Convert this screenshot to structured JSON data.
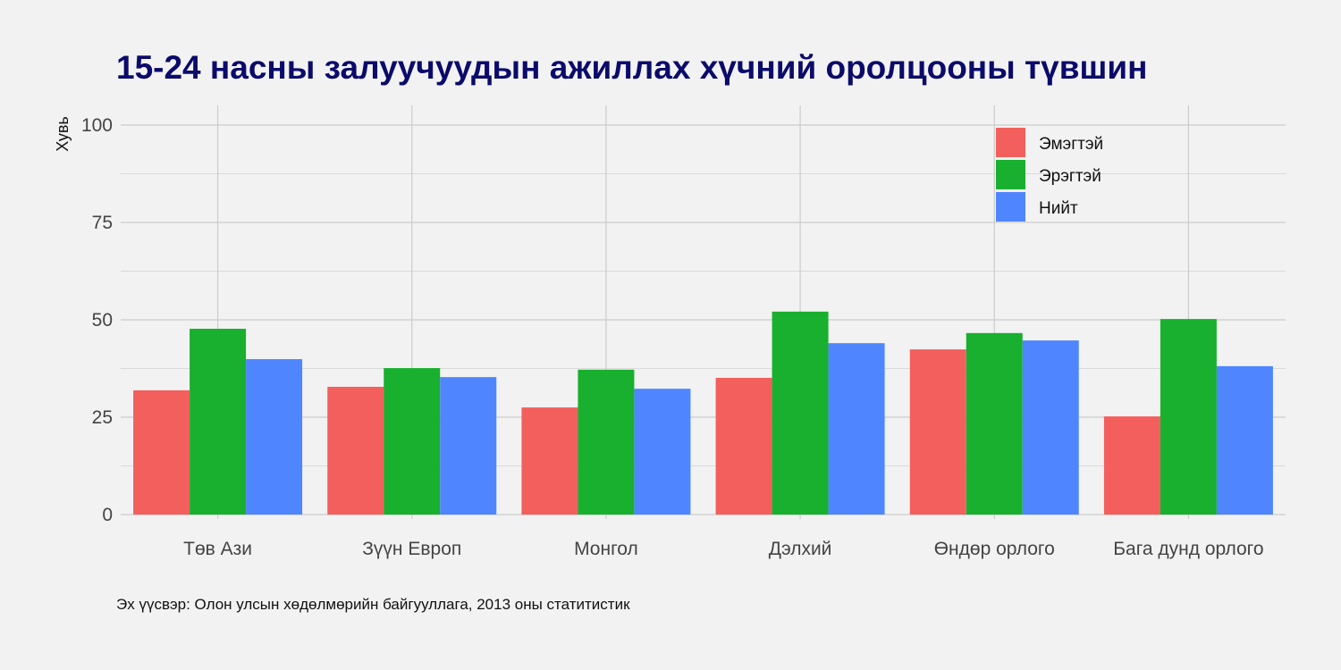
{
  "chart_data": {
    "type": "bar",
    "title": "15-24 насны залуучуудын ажиллах хүчний оролцооны түвшин",
    "xlabel": "",
    "ylabel": "Хувь",
    "ylim": [
      0,
      100
    ],
    "yticks": [
      0,
      25,
      50,
      75,
      100
    ],
    "grid": true,
    "legend_position": "top-right",
    "categories": [
      "Төв Ази",
      "Зүүн Европ",
      "Монгол",
      "Дэлхий",
      "Өндөр орлого",
      "Бага дунд орлого"
    ],
    "series": [
      {
        "name": "Эмэгтэй",
        "color": "#F35F5C",
        "values": [
          31.9,
          32.8,
          27.5,
          35.1,
          42.4,
          25.2
        ]
      },
      {
        "name": "Эрэгтэй",
        "color": "#18B02E",
        "values": [
          47.7,
          37.6,
          37.2,
          52.1,
          46.6,
          50.2
        ]
      },
      {
        "name": "Нийт",
        "color": "#4F86FF",
        "values": [
          39.9,
          35.3,
          32.3,
          44.0,
          44.7,
          38.1
        ]
      }
    ],
    "caption": "Эх үүсвэр: Олон улсын хөдөлмөрийн байгууллага, 2013 оны статитистик"
  }
}
